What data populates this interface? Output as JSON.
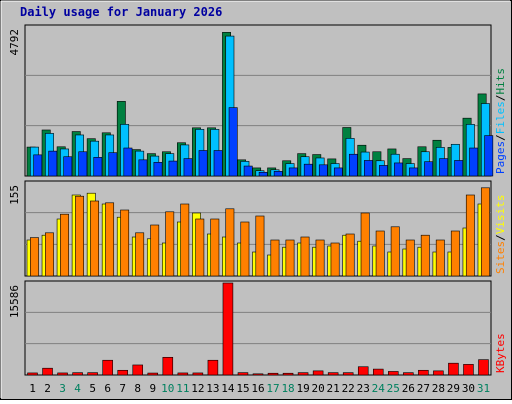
{
  "chart_data": {
    "type": "bar",
    "title": "Daily usage for January 2026",
    "categories": [
      "1",
      "2",
      "3",
      "4",
      "5",
      "6",
      "7",
      "8",
      "9",
      "10",
      "11",
      "12",
      "13",
      "14",
      "15",
      "16",
      "17",
      "18",
      "19",
      "20",
      "21",
      "22",
      "23",
      "24",
      "25",
      "26",
      "27",
      "28",
      "29",
      "30",
      "31"
    ],
    "weekend_days": [
      "3",
      "4",
      "10",
      "11",
      "17",
      "18",
      "24",
      "25",
      "31"
    ],
    "panels": [
      {
        "id": "top",
        "ylim": [
          0,
          4792
        ],
        "max_label": "4792",
        "right_labels": [
          "Pages",
          "Files",
          "Hits"
        ],
        "series": [
          {
            "name": "Hits",
            "color": "#008040",
            "values": [
              930,
              1480,
              940,
              1430,
              1200,
              1390,
              2400,
              850,
              720,
              780,
              1070,
              1550,
              1550,
              4620,
              520,
              260,
              260,
              490,
              720,
              690,
              550,
              1560,
              990,
              780,
              870,
              560,
              940,
              1150,
              920,
              1860,
              2640
            ]
          },
          {
            "name": "Files",
            "color": "#00c0ff",
            "values": [
              930,
              1370,
              870,
              1320,
              1120,
              1320,
              1660,
              800,
              640,
              720,
              1000,
              1500,
              1500,
              4500,
              470,
              170,
              200,
              400,
              620,
              580,
              400,
              1210,
              770,
              490,
              700,
              400,
              780,
              920,
              1020,
              1660,
              2330
            ]
          },
          {
            "name": "Pages",
            "color": "#0040ff",
            "values": [
              680,
              800,
              620,
              780,
              600,
              750,
              900,
              520,
              440,
              480,
              560,
              820,
              820,
              2200,
              320,
              120,
              150,
              260,
              380,
              360,
              260,
              700,
              500,
              340,
              420,
              260,
              460,
              560,
              500,
              900,
              1300
            ]
          }
        ]
      },
      {
        "id": "middle",
        "ylim": [
          0,
          155
        ],
        "max_label": "155",
        "right_labels": [
          "Sites",
          "Visits"
        ],
        "series": [
          {
            "name": "Visits",
            "color": "#ffff00",
            "values": [
              60,
              68,
              95,
              135,
              138,
              120,
              98,
              65,
              62,
              55,
              90,
              105,
              70,
              65,
              55,
              40,
              35,
              48,
              55,
              48,
              50,
              68,
              58,
              50,
              40,
              45,
              48,
              40,
              40,
              80,
              120
            ]
          },
          {
            "name": "Sites",
            "color": "#ff8000",
            "values": [
              64,
              72,
              103,
              133,
              125,
              122,
              110,
              72,
              85,
              107,
              120,
              95,
              95,
              112,
              90,
              100,
              60,
              60,
              65,
              60,
              55,
              70,
              105,
              75,
              82,
              60,
              68,
              60,
              75,
              135,
              147
            ]
          }
        ]
      },
      {
        "id": "bottom",
        "ylim": [
          0,
          15586
        ],
        "max_label": "15586",
        "right_labels": [
          "KBytes"
        ],
        "series": [
          {
            "name": "KBytes",
            "color": "#ff0000",
            "values": [
              350,
              1150,
              350,
              400,
              400,
              2500,
              800,
              1700,
              330,
              3000,
              350,
              350,
              2500,
              15586,
              400,
              200,
              300,
              300,
              400,
              700,
              400,
              400,
              1400,
              1000,
              600,
              400,
              800,
              700,
              2000,
              1800,
              2600
            ]
          }
        ]
      }
    ]
  }
}
